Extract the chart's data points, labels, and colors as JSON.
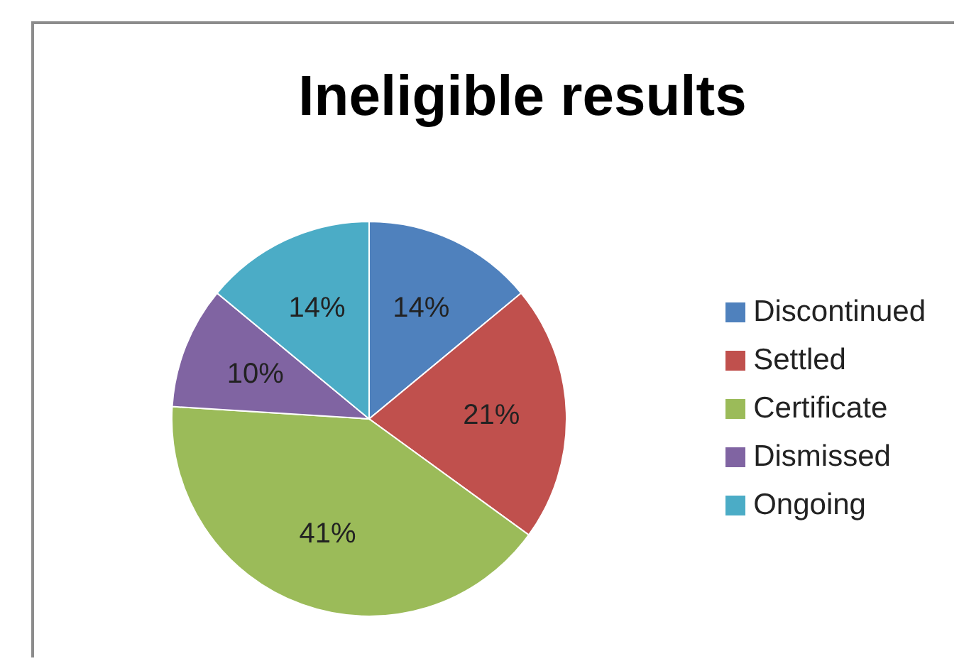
{
  "chart_data": {
    "type": "pie",
    "title": "Ineligible results",
    "categories": [
      "Discontinued",
      "Settled",
      "Certificate",
      "Dismissed",
      "Ongoing"
    ],
    "values": [
      14,
      21,
      41,
      10,
      14
    ],
    "value_labels": [
      "14%",
      "21%",
      "41%",
      "10%",
      "14%"
    ],
    "colors": [
      "#4f81bd",
      "#c0504d",
      "#9bbb59",
      "#8064a2",
      "#4bacc6"
    ],
    "legend": "right"
  }
}
